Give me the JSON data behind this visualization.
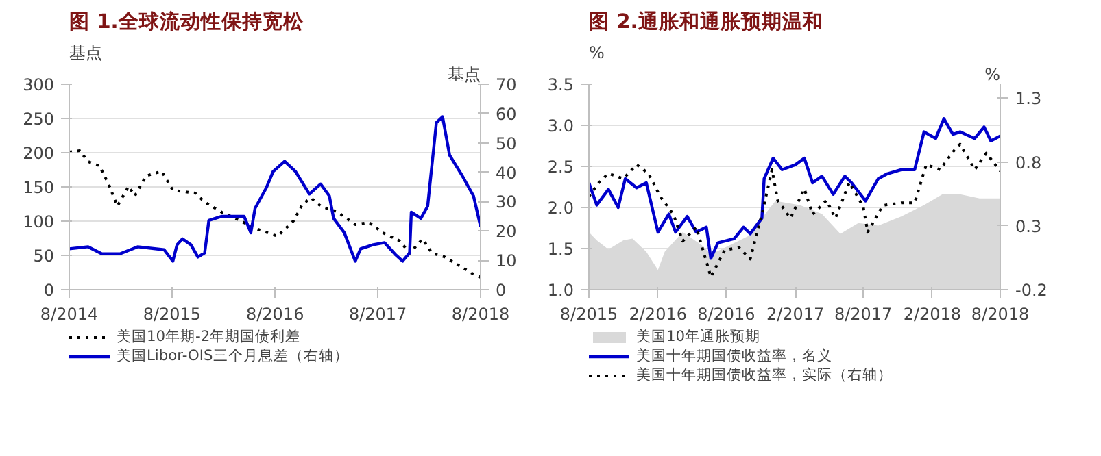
{
  "chart_data": [
    {
      "type": "line",
      "title": "图 1.全球流动性保持宽松",
      "ylabel": "基点",
      "y2label": "基点",
      "grid": "y",
      "legend": "bottom",
      "xlim": [
        "2014-08-01",
        "2018-08-01"
      ],
      "xticks": [
        {
          "value": "2014-08-01",
          "label": "8/2014"
        },
        {
          "value": "2015-08-01",
          "label": "8/2015"
        },
        {
          "value": "2016-08-01",
          "label": "8/2016"
        },
        {
          "value": "2017-08-01",
          "label": "8/2017"
        },
        {
          "value": "2018-08-01",
          "label": "8/2018"
        }
      ],
      "ylim": [
        0,
        300
      ],
      "yticks": [
        0,
        50,
        100,
        150,
        200,
        250,
        300
      ],
      "y2lim": [
        0,
        70
      ],
      "y2ticks": [
        0,
        10,
        20,
        30,
        40,
        50,
        60,
        70
      ],
      "series": [
        {
          "name": "美国10年期-2年期国债利差",
          "color": "#000000",
          "line_style": "dotted",
          "x": [
            "2014-08-01",
            "2014-09-07",
            "2014-10-07",
            "2014-11-16",
            "2014-12-19",
            "2015-01-19",
            "2015-02-28",
            "2015-03-22",
            "2015-05-01",
            "2015-06-25",
            "2015-08-04",
            "2015-10-22",
            "2015-11-25",
            "2016-01-25",
            "2016-03-28",
            "2016-06-01",
            "2016-08-10",
            "2016-10-07",
            "2016-11-07",
            "2016-12-07",
            "2017-01-10",
            "2017-03-13",
            "2017-05-13",
            "2017-07-01",
            "2017-08-19",
            "2017-10-19",
            "2017-11-22",
            "2018-01-07",
            "2018-02-10",
            "2018-03-25",
            "2018-05-13",
            "2018-07-01",
            "2018-08-01"
          ],
          "values": [
            201,
            203,
            187,
            181,
            154,
            122,
            151,
            137,
            166,
            173,
            145,
            141,
            128,
            113,
            101,
            88,
            78,
            101,
            125,
            134,
            122,
            113,
            95,
            98,
            83,
            71,
            53,
            74,
            53,
            48,
            36,
            24,
            18
          ]
        },
        {
          "name": "美国Libor-OIS三个月息差（右轴）",
          "color": "#0000cc",
          "line_style": "solid",
          "axis": "y2",
          "x": [
            "2014-08-01",
            "2014-10-07",
            "2014-11-25",
            "2015-01-28",
            "2015-04-01",
            "2015-07-04",
            "2015-08-04",
            "2015-08-19",
            "2015-09-07",
            "2015-10-07",
            "2015-11-01",
            "2015-11-25",
            "2015-12-10",
            "2016-01-25",
            "2016-04-13",
            "2016-05-07",
            "2016-05-22",
            "2016-07-01",
            "2016-07-25",
            "2016-09-04",
            "2016-10-13",
            "2016-12-01",
            "2017-01-10",
            "2017-02-10",
            "2017-02-25",
            "2017-04-04",
            "2017-05-13",
            "2017-06-01",
            "2017-07-16",
            "2017-08-25",
            "2017-10-04",
            "2017-10-28",
            "2017-11-22",
            "2017-11-28",
            "2018-01-01",
            "2018-01-25",
            "2018-02-25",
            "2018-03-19",
            "2018-04-13",
            "2018-05-28",
            "2018-07-07",
            "2018-08-01"
          ],
          "values": [
            13.9,
            14.6,
            12.2,
            12.2,
            14.6,
            13.6,
            9.7,
            15.3,
            17.3,
            15.3,
            11.1,
            12.5,
            23.6,
            25,
            25,
            19.4,
            27.7,
            34.7,
            40.2,
            43.7,
            40.2,
            32.6,
            36,
            31.9,
            24.3,
            19.4,
            9.7,
            13.9,
            15.3,
            16,
            11.8,
            9.7,
            12.5,
            26.4,
            24.3,
            28.4,
            56.9,
            58.9,
            45.8,
            38.8,
            31.9,
            21.5
          ]
        }
      ]
    },
    {
      "type": "line",
      "title": "图 2.通胀和通胀预期温和",
      "ylabel": "%",
      "y2label": "%",
      "grid": "y",
      "legend": "bottom",
      "xlim": [
        "2015-08-01",
        "2018-08-01"
      ],
      "xticks": [
        {
          "value": "2015-08-01",
          "label": "8/2015"
        },
        {
          "value": "2016-02-01",
          "label": "2/2016"
        },
        {
          "value": "2016-08-01",
          "label": "8/2016"
        },
        {
          "value": "2017-02-01",
          "label": "2/2017"
        },
        {
          "value": "2017-08-01",
          "label": "8/2017"
        },
        {
          "value": "2018-02-01",
          "label": "2/2018"
        },
        {
          "value": "2018-08-01",
          "label": "8/2018"
        }
      ],
      "ylim": [
        1.0,
        3.5
      ],
      "yticks": [
        {
          "value": 1.0,
          "label": "1.0"
        },
        {
          "value": 1.5,
          "label": "1.5"
        },
        {
          "value": 2.0,
          "label": "2.0"
        },
        {
          "value": 2.5,
          "label": "2.5"
        },
        {
          "value": 3.0,
          "label": "3.0"
        },
        {
          "value": 3.5,
          "label": "3.5"
        }
      ],
      "y2lim": [
        -0.2,
        1.41
      ],
      "y2ticks": [
        -0.2,
        0.3,
        0.8,
        1.3
      ],
      "series": [
        {
          "name": "美国10年通胀预期",
          "type": "area",
          "color": "#d9d9d9",
          "x": [
            "2015-08-01",
            "2015-08-22",
            "2015-09-22",
            "2015-11-01",
            "2015-11-25",
            "2016-01-01",
            "2016-02-01",
            "2016-02-19",
            "2016-04-07",
            "2016-05-28",
            "2016-06-21",
            "2016-08-10",
            "2016-09-28",
            "2016-11-04",
            "2016-12-10",
            "2017-02-13",
            "2017-04-13",
            "2017-06-01",
            "2017-07-19",
            "2017-09-10",
            "2017-11-10",
            "2018-01-10",
            "2018-02-28",
            "2018-04-16",
            "2018-06-07",
            "2018-08-01"
          ],
          "values": [
            1.7,
            1.6,
            1.49,
            1.6,
            1.62,
            1.46,
            1.24,
            1.46,
            1.7,
            1.54,
            1.43,
            1.54,
            1.65,
            1.87,
            2.08,
            2.03,
            1.92,
            1.68,
            1.81,
            1.78,
            1.89,
            2.03,
            2.16,
            2.16,
            2.11,
            2.11
          ]
        },
        {
          "name": "美国十年期国债收益率，名义",
          "color": "#0000cc",
          "line_style": "solid",
          "x": [
            "2015-08-01",
            "2015-08-22",
            "2015-09-22",
            "2015-10-18",
            "2015-11-06",
            "2015-12-06",
            "2016-01-01",
            "2016-02-01",
            "2016-03-01",
            "2016-03-19",
            "2016-04-19",
            "2016-05-13",
            "2016-06-09",
            "2016-06-21",
            "2016-07-10",
            "2016-08-22",
            "2016-09-16",
            "2016-10-04",
            "2016-11-04",
            "2016-11-10",
            "2016-12-04",
            "2016-12-28",
            "2017-02-01",
            "2017-02-25",
            "2017-03-19",
            "2017-04-13",
            "2017-05-13",
            "2017-06-13",
            "2017-07-01",
            "2017-08-07",
            "2017-09-10",
            "2017-10-04",
            "2017-11-10",
            "2017-12-16",
            "2018-01-10",
            "2018-02-10",
            "2018-03-04",
            "2018-03-28",
            "2018-04-16",
            "2018-05-25",
            "2018-06-19",
            "2018-07-07",
            "2018-08-01"
          ],
          "values": [
            2.3,
            2.03,
            2.22,
            2.0,
            2.35,
            2.24,
            2.3,
            1.7,
            1.92,
            1.7,
            1.89,
            1.7,
            1.76,
            1.38,
            1.57,
            1.62,
            1.76,
            1.68,
            1.87,
            2.35,
            2.6,
            2.46,
            2.52,
            2.6,
            2.3,
            2.38,
            2.16,
            2.38,
            2.3,
            2.08,
            2.35,
            2.41,
            2.46,
            2.46,
            2.92,
            2.84,
            3.08,
            2.89,
            2.92,
            2.84,
            2.98,
            2.81,
            2.87
          ]
        },
        {
          "name": "美国十年期国债收益率，实际（右轴）",
          "color": "#000000",
          "line_style": "dotted",
          "axis": "y2",
          "x": [
            "2015-08-01",
            "2015-08-28",
            "2015-09-22",
            "2015-11-01",
            "2015-12-06",
            "2016-01-07",
            "2016-02-07",
            "2016-03-13",
            "2016-04-07",
            "2016-05-13",
            "2016-06-21",
            "2016-07-28",
            "2016-09-04",
            "2016-10-04",
            "2016-11-04",
            "2016-12-01",
            "2016-12-16",
            "2017-01-19",
            "2017-02-25",
            "2017-03-19",
            "2017-04-25",
            "2017-05-19",
            "2017-06-25",
            "2017-08-01",
            "2017-08-13",
            "2017-09-22",
            "2017-11-10",
            "2017-12-16",
            "2018-01-16",
            "2018-02-22",
            "2018-03-28",
            "2018-04-16",
            "2018-05-25",
            "2018-06-25",
            "2018-08-01"
          ],
          "values": [
            0.53,
            0.64,
            0.71,
            0.67,
            0.78,
            0.71,
            0.53,
            0.39,
            0.18,
            0.29,
            -0.1,
            0.11,
            0.13,
            0.04,
            0.39,
            0.74,
            0.5,
            0.36,
            0.59,
            0.39,
            0.5,
            0.36,
            0.64,
            0.45,
            0.25,
            0.46,
            0.48,
            0.48,
            0.78,
            0.74,
            0.88,
            0.94,
            0.74,
            0.87,
            0.73
          ]
        }
      ]
    }
  ]
}
